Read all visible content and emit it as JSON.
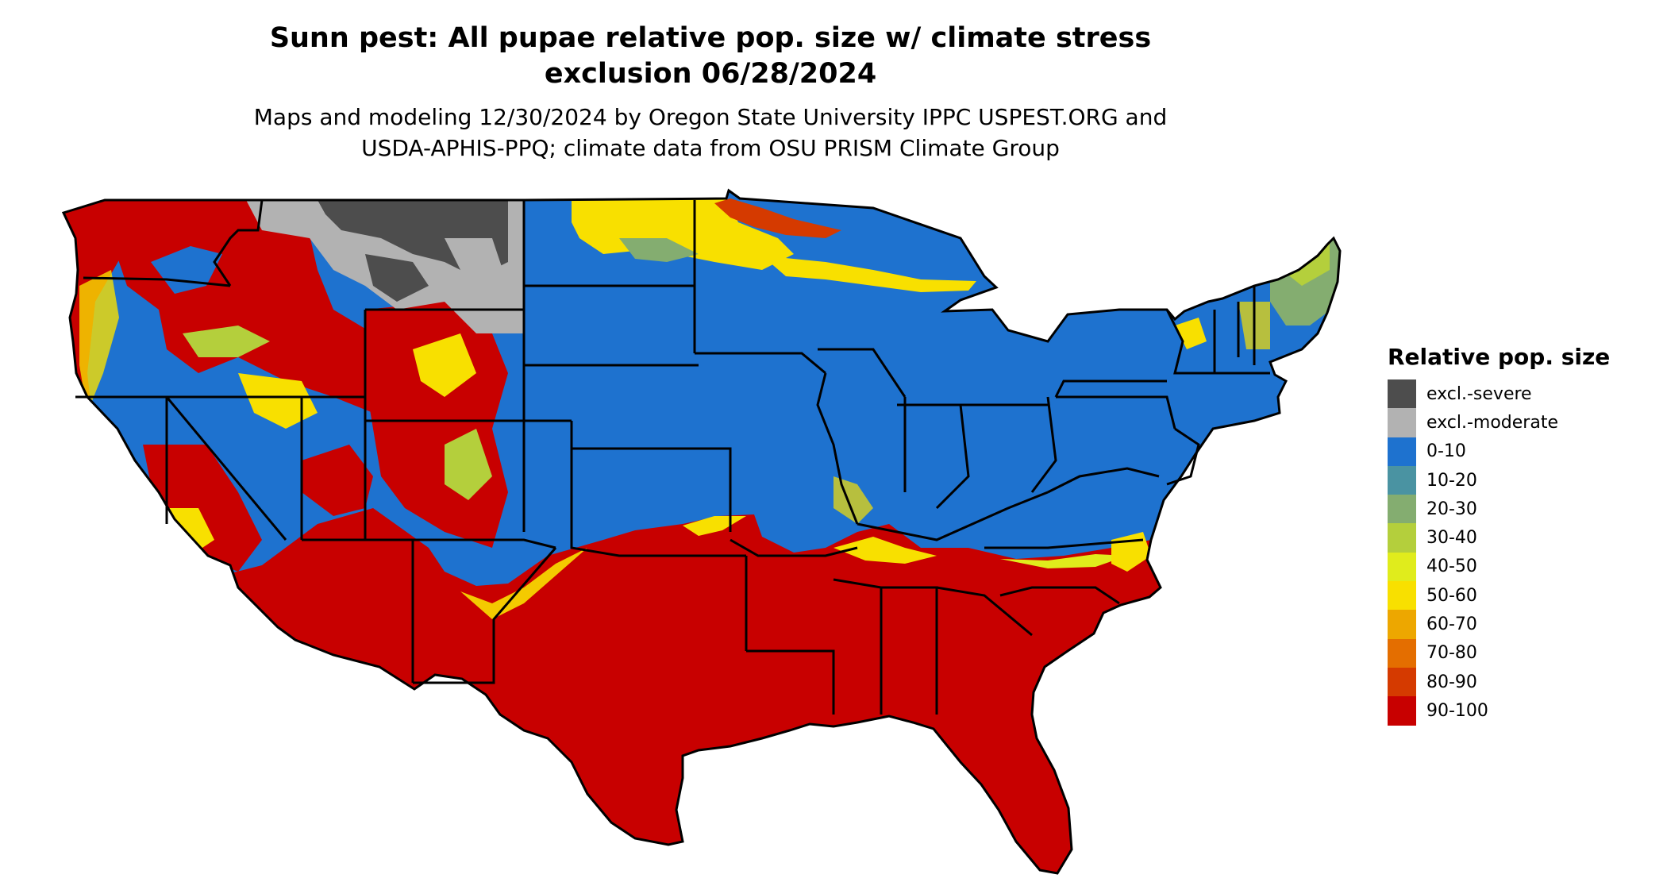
{
  "title_line1": "Sunn pest: All pupae relative pop. size w/ climate stress",
  "title_line2": "exclusion 06/28/2024",
  "subtitle_line1": "Maps and modeling 12/30/2024 by Oregon State University IPPC USPEST.ORG and",
  "subtitle_line2": "USDA-APHIS-PPQ; climate data from OSU PRISM Climate Group",
  "legend": {
    "title": "Relative pop. size",
    "items": [
      {
        "label": "excl.-severe",
        "color": "#4d4d4d"
      },
      {
        "label": "excl.-moderate",
        "color": "#b2b2b2"
      },
      {
        "label": "0-10",
        "color": "#1e72cf"
      },
      {
        "label": "10-20",
        "color": "#4a93a2"
      },
      {
        "label": "20-30",
        "color": "#84ad70"
      },
      {
        "label": "30-40",
        "color": "#b4cf3c"
      },
      {
        "label": "40-50",
        "color": "#e0ec1c"
      },
      {
        "label": "50-60",
        "color": "#f8e000"
      },
      {
        "label": "60-70",
        "color": "#eda700"
      },
      {
        "label": "70-80",
        "color": "#e46e00"
      },
      {
        "label": "80-90",
        "color": "#d53a00"
      },
      {
        "label": "90-100",
        "color": "#c80000"
      }
    ]
  }
}
